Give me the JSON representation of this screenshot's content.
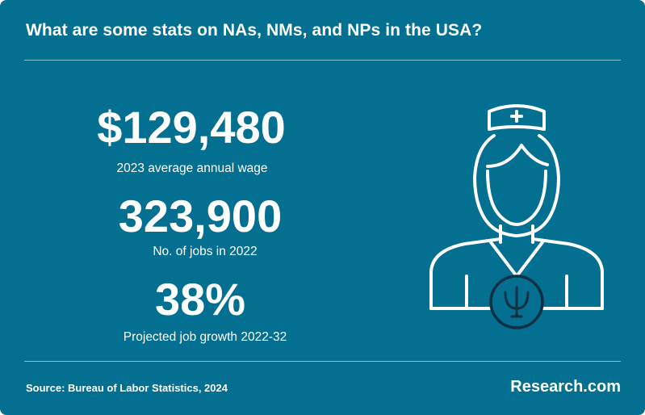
{
  "title": "What are some stats on NAs, NMs, and NPs in the USA?",
  "stats": [
    {
      "value": "$129,480",
      "label": "2023 average annual wage"
    },
    {
      "value": "323,900",
      "label": "No. of jobs in 2022"
    },
    {
      "value": "38%",
      "label": "Projected job growth 2022-32"
    }
  ],
  "footer": {
    "source": "Source: Bureau of Labor Statistics, 2024",
    "brand": "Research.com"
  },
  "icons": [
    "nurse-icon",
    "psi-icon"
  ],
  "colors": {
    "background": "#036f91",
    "text": "#ffffff",
    "badge": "#036f91"
  }
}
